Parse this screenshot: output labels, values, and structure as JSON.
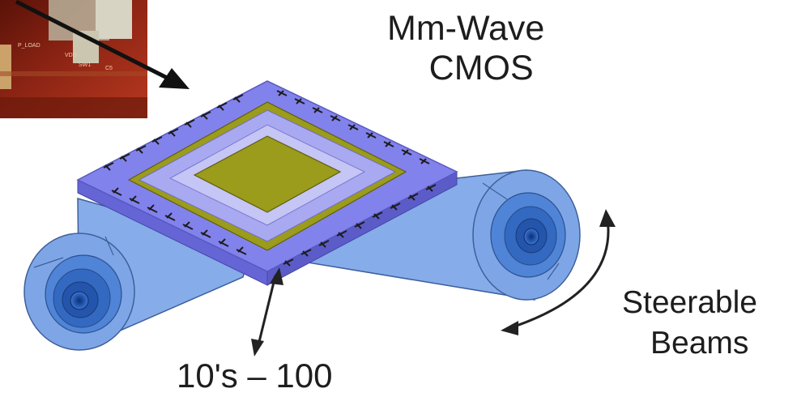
{
  "diagram": {
    "chip_label_line1": "Mm-Wave",
    "chip_label_line2": "CMOS",
    "beams_label_line1": "Steerable",
    "beams_label_line2": "Beams",
    "dimension_label": "10's – 100",
    "colors": {
      "chip_substrate": "#7f7fe8",
      "chip_substrate_edge": "#5858c2",
      "chip_die": "#9b9b1c",
      "chip_ring": "#a9a9f2",
      "beam_fill": "#7ea6e6",
      "beam_dark": "#1f4fa6",
      "arrow": "#222222",
      "pcb_photo": "#8a1d12"
    }
  }
}
